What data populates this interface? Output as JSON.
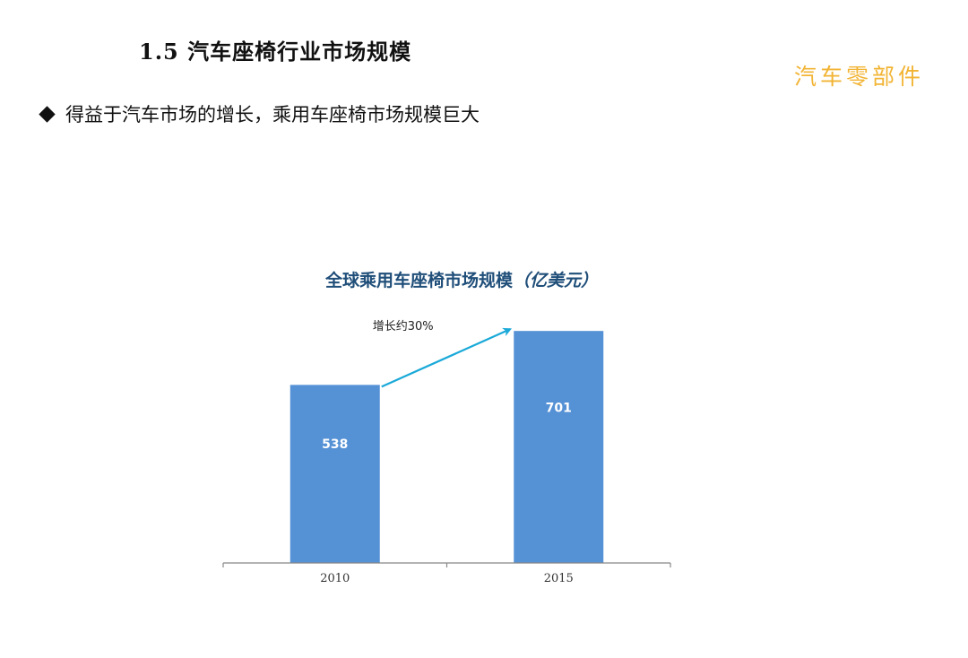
{
  "page": {
    "heading": "1.5 汽车座椅行业市场规模",
    "watermark": "汽车零部件",
    "bullet": "得益于汽车市场的增长，乘用车座椅市场规模巨大"
  },
  "chart_data": {
    "type": "bar",
    "title": "全球乘用车座椅市场规模",
    "title_unit": "（亿美元）",
    "categories": [
      "2010",
      "2015"
    ],
    "values": [
      538,
      701
    ],
    "value_labels": [
      "538",
      "701"
    ],
    "annotation": "增长约30%",
    "bar_color": "#5591d5",
    "arrow_color": "#1aa9d8",
    "ylim": [
      0,
      780
    ],
    "grid": false,
    "xlabel": "",
    "ylabel": ""
  }
}
